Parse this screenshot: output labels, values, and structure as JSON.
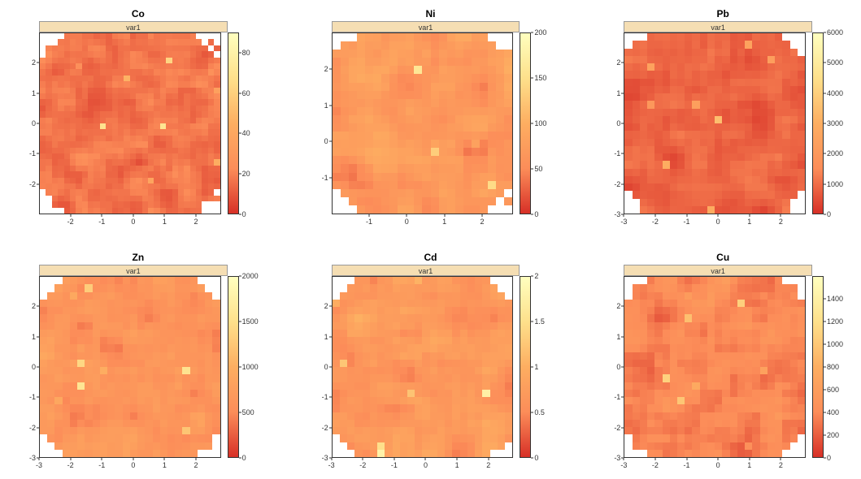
{
  "layout": {
    "rows": 2,
    "cols": 3,
    "background": "#ffffff"
  },
  "strip_label": "var1",
  "strip_bg": "#f5deb3",
  "strip_border": "#999999",
  "axis_color": "#333333",
  "font_family": "Arial, sans-serif",
  "title_fontsize": 12,
  "tick_fontsize": 9,
  "colormap_stops": [
    {
      "t": 0.0,
      "c": "#d73027"
    },
    {
      "t": 0.25,
      "c": "#fc8d59"
    },
    {
      "t": 0.5,
      "c": "#fdae61"
    },
    {
      "t": 0.75,
      "c": "#fee08b"
    },
    {
      "t": 1.0,
      "c": "#ffffbf"
    }
  ],
  "na_color": "#ffffff",
  "panels": [
    {
      "title": "Co",
      "grid_n": 30,
      "x_range": [
        -3,
        3
      ],
      "x_ticks": [
        -2,
        -1,
        0,
        1,
        2
      ],
      "y_range": [
        -3,
        3
      ],
      "y_ticks": [
        -2,
        -1,
        0,
        1,
        2
      ],
      "cb_range": [
        0,
        90
      ],
      "cb_ticks": [
        0,
        20,
        40,
        60,
        80
      ],
      "seed": 1,
      "mean_t": 0.18,
      "spread": 0.16,
      "na_corners": true,
      "na_radius": 3.6
    },
    {
      "title": "Ni",
      "grid_n": 22,
      "x_range": [
        -2,
        3
      ],
      "x_ticks": [
        -1,
        0,
        1,
        2
      ],
      "y_range": [
        -2,
        3
      ],
      "y_ticks": [
        -1,
        0,
        1,
        2
      ],
      "cb_range": [
        0,
        200
      ],
      "cb_ticks": [
        0,
        50,
        100,
        150,
        200
      ],
      "seed": 2,
      "mean_t": 0.35,
      "spread": 0.25,
      "na_corners": true,
      "na_radius": 3.0
    },
    {
      "title": "Pb",
      "grid_n": 24,
      "x_range": [
        -3,
        3
      ],
      "x_ticks": [
        -3,
        -2,
        -1,
        0,
        1,
        2
      ],
      "y_range": [
        -3,
        3
      ],
      "y_ticks": [
        -3,
        -2,
        -1,
        0,
        1,
        2
      ],
      "cb_range": [
        0,
        6000
      ],
      "cb_ticks": [
        0,
        1000,
        2000,
        3000,
        4000,
        5000,
        6000
      ],
      "seed": 3,
      "mean_t": 0.14,
      "spread": 0.14,
      "na_corners": true,
      "na_radius": 3.4
    },
    {
      "title": "Zn",
      "grid_n": 24,
      "x_range": [
        -3,
        3
      ],
      "x_ticks": [
        -3,
        -2,
        -1,
        0,
        1,
        2
      ],
      "y_range": [
        -3,
        3
      ],
      "y_ticks": [
        -3,
        -2,
        -1,
        0,
        1,
        2
      ],
      "cb_range": [
        0,
        2000
      ],
      "cb_ticks": [
        0,
        500,
        1000,
        1500,
        2000
      ],
      "seed": 4,
      "mean_t": 0.32,
      "spread": 0.24,
      "na_corners": true,
      "na_radius": 3.5
    },
    {
      "title": "Cd",
      "grid_n": 24,
      "x_range": [
        -3,
        3
      ],
      "x_ticks": [
        -3,
        -2,
        -1,
        0,
        1,
        2
      ],
      "y_range": [
        -3,
        3
      ],
      "y_ticks": [
        -3,
        -2,
        -1,
        0,
        1,
        2
      ],
      "cb_range": [
        0,
        2
      ],
      "cb_ticks": [
        0.0,
        0.5,
        1.0,
        1.5,
        2.0
      ],
      "seed": 5,
      "mean_t": 0.34,
      "spread": 0.24,
      "na_corners": true,
      "na_radius": 3.5
    },
    {
      "title": "Cu",
      "grid_n": 24,
      "x_range": [
        -3,
        3
      ],
      "x_ticks": [
        -3,
        -2,
        -1,
        0,
        1,
        2
      ],
      "y_range": [
        -3,
        3
      ],
      "y_ticks": [
        -3,
        -2,
        -1,
        0,
        1,
        2
      ],
      "cb_range": [
        0,
        1600
      ],
      "cb_ticks": [
        0,
        200,
        400,
        600,
        800,
        1000,
        1200,
        1400
      ],
      "seed": 6,
      "mean_t": 0.24,
      "spread": 0.22,
      "na_corners": true,
      "na_radius": 3.4
    }
  ]
}
